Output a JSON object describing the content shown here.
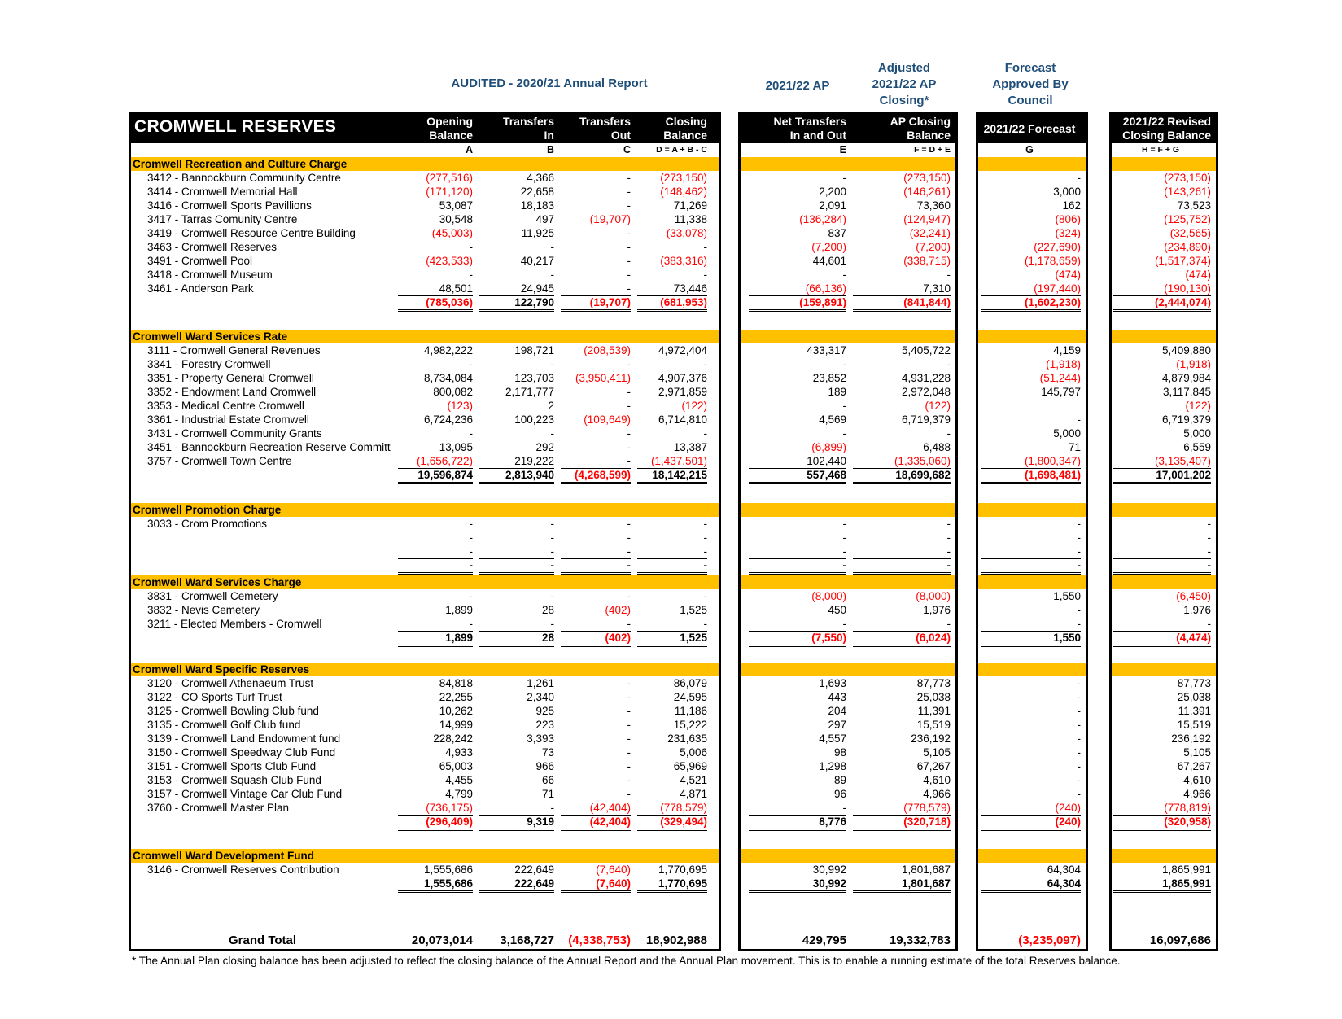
{
  "top_headers": {
    "audited": "AUDITED - 2020/21 Annual Report",
    "ap": "2021/22 AP",
    "adjusted": [
      "Adjusted",
      "2021/22 AP",
      "Closing*"
    ],
    "forecast": [
      "Forecast",
      "Approved By",
      "Council"
    ]
  },
  "title": "CROMWELL RESERVES",
  "columns": [
    {
      "l1": "Opening",
      "l2": "Balance",
      "letter": "A"
    },
    {
      "l1": "Transfers",
      "l2": "In",
      "letter": "B"
    },
    {
      "l1": "Transfers",
      "l2": "Out",
      "letter": "C"
    },
    {
      "l1": "Closing",
      "l2": "Balance",
      "letter": "D = A + B - C"
    },
    {
      "l1": "Net Transfers",
      "l2": "In and Out",
      "letter": "E"
    },
    {
      "l1": "AP Closing",
      "l2": "Balance",
      "letter": "F = D + E"
    },
    {
      "l1": "2021/22 Forecast",
      "l2": "",
      "letter": "G"
    },
    {
      "l1": "2021/22 Revised",
      "l2": "Closing Balance",
      "letter": "H = F + G"
    }
  ],
  "sections": [
    {
      "name": "Cromwell Recreation and Culture Charge",
      "rows": [
        {
          "label": "3412 - Bannockburn Community Centre",
          "v": [
            "(277,516)",
            "4,366",
            "-",
            "(273,150)",
            "-",
            "(273,150)",
            "-",
            "(273,150)"
          ]
        },
        {
          "label": "3414 - Cromwell Memorial Hall",
          "v": [
            "(171,120)",
            "22,658",
            "-",
            "(148,462)",
            "2,200",
            "(146,261)",
            "3,000",
            "(143,261)"
          ]
        },
        {
          "label": "3416 - Cromwell Sports Pavillions",
          "v": [
            "53,087",
            "18,183",
            "-",
            "71,269",
            "2,091",
            "73,360",
            "162",
            "73,523"
          ]
        },
        {
          "label": "3417 - Tarras Comunity Centre",
          "v": [
            "30,548",
            "497",
            "(19,707)",
            "11,338",
            "(136,284)",
            "(124,947)",
            "(806)",
            "(125,752)"
          ]
        },
        {
          "label": "3419 - Cromwell Resource Centre Building",
          "v": [
            "(45,003)",
            "11,925",
            "-",
            "(33,078)",
            "837",
            "(32,241)",
            "(324)",
            "(32,565)"
          ]
        },
        {
          "label": "3463 - Cromwell Reserves",
          "v": [
            "-",
            "-",
            "-",
            "-",
            "(7,200)",
            "(7,200)",
            "(227,690)",
            "(234,890)"
          ]
        },
        {
          "label": "3491 - Cromwell Pool",
          "v": [
            "(423,533)",
            "40,217",
            "-",
            "(383,316)",
            "44,601",
            "(338,715)",
            "(1,178,659)",
            "(1,517,374)"
          ]
        },
        {
          "label": "3418 - Cromwell Museum",
          "v": [
            "-",
            "-",
            "-",
            "-",
            "-",
            "-",
            "(474)",
            "(474)"
          ]
        },
        {
          "label": "3461 - Anderson Park",
          "v": [
            "48,501",
            "24,945",
            "-",
            "73,446",
            "(66,136)",
            "7,310",
            "(197,440)",
            "(190,130)"
          ]
        }
      ],
      "total": [
        "(785,036)",
        "122,790",
        "(19,707)",
        "(681,953)",
        "(159,891)",
        "(841,844)",
        "(1,602,230)",
        "(2,444,074)"
      ]
    },
    {
      "name": "Cromwell Ward Services Rate",
      "rows": [
        {
          "label": "3111 - Cromwell General Revenues",
          "v": [
            "4,982,222",
            "198,721",
            "(208,539)",
            "4,972,404",
            "433,317",
            "5,405,722",
            "4,159",
            "5,409,880"
          ]
        },
        {
          "label": "3341 - Forestry Cromwell",
          "v": [
            "-",
            "-",
            "-",
            "-",
            "-",
            "-",
            "(1,918)",
            "(1,918)"
          ]
        },
        {
          "label": "3351 - Property General Cromwell",
          "v": [
            "8,734,084",
            "123,703",
            "(3,950,411)",
            "4,907,376",
            "23,852",
            "4,931,228",
            "(51,244)",
            "4,879,984"
          ]
        },
        {
          "label": "3352 - Endowment Land Cromwell",
          "v": [
            "800,082",
            "2,171,777",
            "-",
            "2,971,859",
            "189",
            "2,972,048",
            "145,797",
            "3,117,845"
          ]
        },
        {
          "label": "3353 - Medical Centre Cromwell",
          "v": [
            "(123)",
            "2",
            "-",
            "(122)",
            "-",
            "(122)",
            "",
            "(122)"
          ]
        },
        {
          "label": "3361 - Industrial Estate Cromwell",
          "v": [
            "6,724,236",
            "100,223",
            "(109,649)",
            "6,714,810",
            "4,569",
            "6,719,379",
            "-",
            "6,719,379"
          ]
        },
        {
          "label": "3431 - Cromwell Community Grants",
          "v": [
            "-",
            "-",
            "-",
            "-",
            "-",
            "-",
            "5,000",
            "5,000"
          ]
        },
        {
          "label": "3451 - Bannockburn Recreation Reserve Committ",
          "v": [
            "13,095",
            "292",
            "-",
            "13,387",
            "(6,899)",
            "6,488",
            "71",
            "6,559"
          ]
        },
        {
          "label": "3757 - Cromwell Town Centre",
          "v": [
            "(1,656,722)",
            "219,222",
            "-",
            "(1,437,501)",
            "102,440",
            "(1,335,060)",
            "(1,800,347)",
            "(3,135,407)"
          ]
        }
      ],
      "total": [
        "19,596,874",
        "2,813,940",
        "(4,268,599)",
        "18,142,215",
        "557,468",
        "18,699,682",
        "(1,698,481)",
        "17,001,202"
      ]
    },
    {
      "name": "Cromwell Promotion Charge",
      "rows": [
        {
          "label": "3033 - Crom Promotions",
          "v": [
            "-",
            "-",
            "-",
            "-",
            "-",
            "-",
            "-",
            "-"
          ]
        },
        {
          "label": "",
          "v": [
            "-",
            "-",
            "-",
            "-",
            "-",
            "-",
            "-",
            "-"
          ]
        },
        {
          "label": "",
          "v": [
            "-",
            "-",
            "-",
            "-",
            "-",
            "-",
            "-",
            "-"
          ]
        }
      ],
      "total": [
        "-",
        "-",
        "-",
        "-",
        "-",
        "-",
        "-",
        "-"
      ]
    },
    {
      "name": "Cromwell Ward Services Charge",
      "rows": [
        {
          "label": "3831 - Cromwell Cemetery",
          "v": [
            "-",
            "-",
            "-",
            "-",
            "(8,000)",
            "(8,000)",
            "1,550",
            "(6,450)"
          ]
        },
        {
          "label": "3832 - Nevis Cemetery",
          "v": [
            "1,899",
            "28",
            "(402)",
            "1,525",
            "450",
            "1,976",
            "-",
            "1,976"
          ]
        },
        {
          "label": "3211 - Elected Members - Cromwell",
          "v": [
            "-",
            "-",
            "-",
            "-",
            "-",
            "-",
            "-",
            "-"
          ]
        }
      ],
      "total": [
        "1,899",
        "28",
        "(402)",
        "1,525",
        "(7,550)",
        "(6,024)",
        "1,550",
        "(4,474)"
      ]
    },
    {
      "name": "Cromwell Ward Specific Reserves",
      "rows": [
        {
          "label": "3120 - Cromwell Athenaeum Trust",
          "v": [
            "84,818",
            "1,261",
            "-",
            "86,079",
            "1,693",
            "87,773",
            "-",
            "87,773"
          ]
        },
        {
          "label": "3122 - CO Sports Turf Trust",
          "v": [
            "22,255",
            "2,340",
            "-",
            "24,595",
            "443",
            "25,038",
            "-",
            "25,038"
          ]
        },
        {
          "label": "3125 - Cromwell Bowling Club fund",
          "v": [
            "10,262",
            "925",
            "-",
            "11,186",
            "204",
            "11,391",
            "-",
            "11,391"
          ]
        },
        {
          "label": "3135 - Cromwell Golf Club fund",
          "v": [
            "14,999",
            "223",
            "-",
            "15,222",
            "297",
            "15,519",
            "-",
            "15,519"
          ]
        },
        {
          "label": "3139 - Cromwell Land Endowment fund",
          "v": [
            "228,242",
            "3,393",
            "-",
            "231,635",
            "4,557",
            "236,192",
            "-",
            "236,192"
          ]
        },
        {
          "label": "3150 - Cromwell Speedway Club Fund",
          "v": [
            "4,933",
            "73",
            "-",
            "5,006",
            "98",
            "5,105",
            "-",
            "5,105"
          ]
        },
        {
          "label": "3151 - Cromwell Sports Club Fund",
          "v": [
            "65,003",
            "966",
            "-",
            "65,969",
            "1,298",
            "67,267",
            "-",
            "67,267"
          ]
        },
        {
          "label": "3153 - Cromwell Squash Club Fund",
          "v": [
            "4,455",
            "66",
            "-",
            "4,521",
            "89",
            "4,610",
            "-",
            "4,610"
          ]
        },
        {
          "label": "3157 - Cromwell Vintage Car Club Fund",
          "v": [
            "4,799",
            "71",
            "-",
            "4,871",
            "96",
            "4,966",
            "-",
            "4,966"
          ]
        },
        {
          "label": "3760 - Cromwell Master Plan",
          "v": [
            "(736,175)",
            "-",
            "(42,404)",
            "(778,579)",
            "-",
            "(778,579)",
            "(240)",
            "(778,819)"
          ]
        }
      ],
      "total": [
        "(296,409)",
        "9,319",
        "(42,404)",
        "(329,494)",
        "8,776",
        "(320,718)",
        "(240)",
        "(320,958)"
      ]
    },
    {
      "name": "Cromwell Ward Development Fund",
      "rows": [
        {
          "label": "3146 - Cromwell Reserves Contribution",
          "v": [
            "1,555,686",
            "222,649",
            "(7,640)",
            "1,770,695",
            "30,992",
            "1,801,687",
            "64,304",
            "1,865,991"
          ]
        }
      ],
      "total": [
        "1,555,686",
        "222,649",
        "(7,640)",
        "1,770,695",
        "30,992",
        "1,801,687",
        "64,304",
        "1,865,991"
      ]
    }
  ],
  "grand_total": {
    "label": "Grand Total",
    "v": [
      "20,073,014",
      "3,168,727",
      "(4,338,753)",
      "18,902,988",
      "429,795",
      "19,332,783",
      "(3,235,097)",
      "16,097,686"
    ]
  },
  "footnote": "* The Annual Plan closing balance has been adjusted to reflect the closing balance of the Annual Report and the Annual Plan movement. This is to enable a running estimate of the total Reserves balance.",
  "colors": {
    "band": "#ffc000",
    "negative": "#ff0000",
    "header_text": "#1f4e79"
  }
}
